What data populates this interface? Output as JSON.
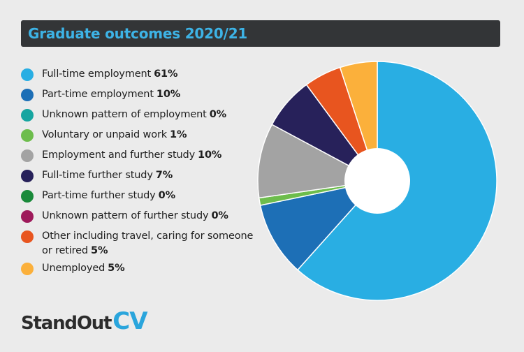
{
  "header": {
    "title": "Graduate outcomes 2020/21"
  },
  "brand": {
    "standout": "StandOut",
    "cv": "CV"
  },
  "chart_data": {
    "type": "pie",
    "title": "Graduate outcomes 2020/21",
    "donut": true,
    "legend_position": "left",
    "slices": [
      {
        "label": "Full-time employment",
        "value_label": "61%",
        "value": 61,
        "color": "#29aee3"
      },
      {
        "label": "Part-time employment",
        "value_label": "10%",
        "value": 10,
        "color": "#1d6fb6"
      },
      {
        "label": "Unknown pattern of employment",
        "value_label": "0%",
        "value": 0,
        "color": "#16a5a0"
      },
      {
        "label": "Voluntary or unpaid work",
        "value_label": "1%",
        "value": 1,
        "color": "#6dbd4c"
      },
      {
        "label": "Employment and further study",
        "value_label": "10%",
        "value": 10,
        "color": "#a3a3a3"
      },
      {
        "label": "Full-time further study",
        "value_label": "7%",
        "value": 7,
        "color": "#27215a"
      },
      {
        "label": "Part-time further study",
        "value_label": "0%",
        "value": 0,
        "color": "#1a8a3a"
      },
      {
        "label": "Unknown pattern of further study",
        "value_label": "0%",
        "value": 0,
        "color": "#9e1a5b"
      },
      {
        "label": "Other including travel, caring for someone or retired",
        "value_label": "5%",
        "value": 5,
        "color": "#e8551f"
      },
      {
        "label": "Unemployed",
        "value_label": "5%",
        "value": 5,
        "color": "#fbb03b"
      }
    ]
  }
}
